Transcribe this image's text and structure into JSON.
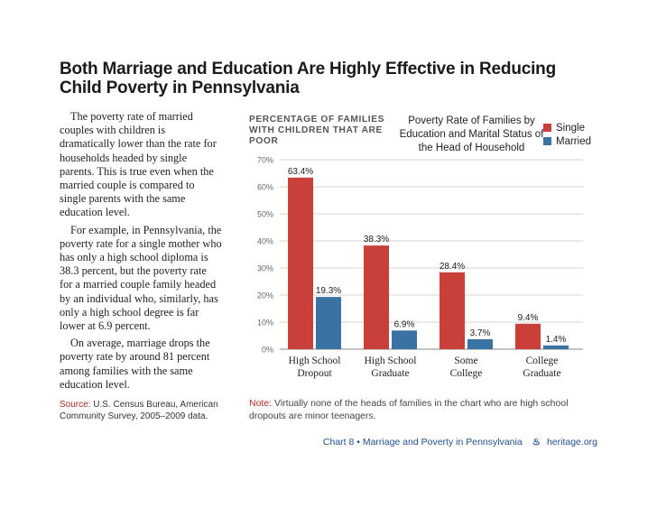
{
  "title": "Both Marriage and Education Are Highly Effective in Reducing Child Poverty in Pennsylvania",
  "body": {
    "paragraph1": "The poverty rate of married couples with children is dramatically lower than the rate for households headed by single parents. This is true even when the married couple is compared to single parents with the same education level.",
    "paragraph2": "For example, in Pennsylvania, the poverty rate for a single mother who has only a high school diploma is 38.3 percent, but the poverty rate for a married couple family headed by an individual who, similarly, has only a high school degree is far lower at 6.9 percent.",
    "paragraph3": "On average, marriage drops the poverty rate by around 81 percent among families with the same education level."
  },
  "source": {
    "label": "Source:",
    "text": "U.S. Census Bureau, American Community Survey, 2005–2009 data."
  },
  "note": {
    "label": "Note:",
    "text": "Virtually none of the heads of families in the chart who are high school dropouts are minor teenagers."
  },
  "footer": {
    "chart_ref": "Chart 8 • Marriage and Poverty in Pennsylvania",
    "site": "heritage.org"
  },
  "colors": {
    "single": "#c9403a",
    "married": "#3a72a3"
  },
  "chart_data": {
    "type": "bar",
    "label": "PERCENTAGE OF FAMILIES WITH CHILDREN THAT ARE POOR",
    "title": "Poverty Rate of Families by Education and Marital Status of the Head of Household",
    "categories": [
      [
        "High School",
        "Dropout"
      ],
      [
        "High School",
        "Graduate"
      ],
      [
        "Some",
        "College"
      ],
      [
        "College",
        "Graduate"
      ]
    ],
    "series": [
      {
        "name": "Single",
        "values": [
          63.4,
          38.3,
          28.4,
          9.4
        ],
        "labels": [
          "63.4%",
          "38.3%",
          "28.4%",
          "9.4%"
        ]
      },
      {
        "name": "Married",
        "values": [
          19.3,
          6.9,
          3.7,
          1.4
        ],
        "labels": [
          "19.3%",
          "6.9%",
          "3.7%",
          "1.4%"
        ]
      }
    ],
    "ylim": [
      0,
      70
    ],
    "yticks": [
      0,
      10,
      20,
      30,
      40,
      50,
      60,
      70
    ],
    "ytick_labels": [
      "0%",
      "10%",
      "20%",
      "30%",
      "40%",
      "50%",
      "60%",
      "70%"
    ],
    "grid": true,
    "legend": "top-right"
  }
}
